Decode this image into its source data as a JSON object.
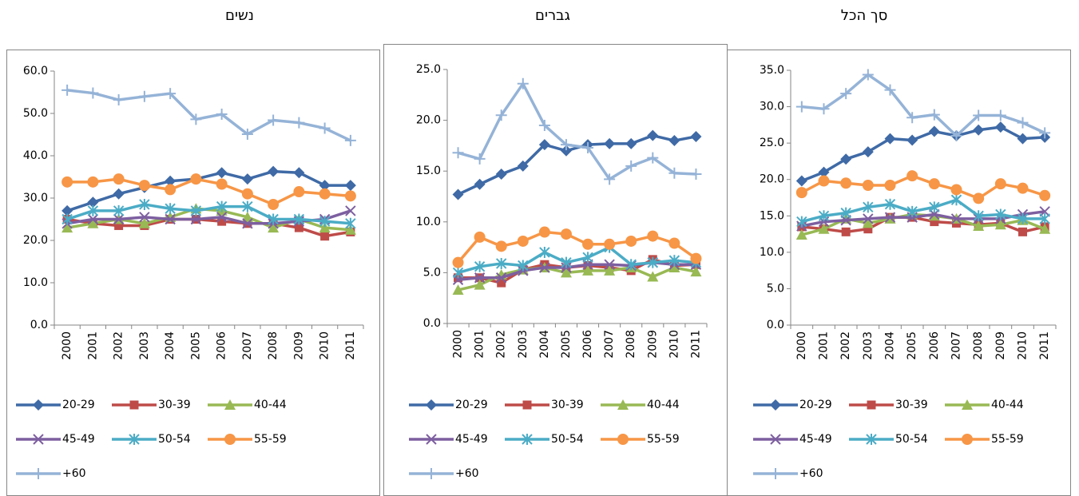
{
  "chart_data": [
    {
      "type": "line",
      "title": "נשים",
      "categories": [
        "2000",
        "2001",
        "2002",
        "2003",
        "2004",
        "2005",
        "2006",
        "2007",
        "2008",
        "2009",
        "2010",
        "2011"
      ],
      "ylim": [
        0,
        60
      ],
      "yticks": [
        {
          "value": 0,
          "label": "0.0"
        },
        {
          "value": 10,
          "label": "10.0"
        },
        {
          "value": 20,
          "label": "20.0"
        },
        {
          "value": 30,
          "label": "30.0"
        },
        {
          "value": 40,
          "label": "40.0"
        },
        {
          "value": 50,
          "label": "50.0"
        },
        {
          "value": 60,
          "label": "60.0"
        }
      ],
      "series": [
        {
          "name": "20-29",
          "color": "#3f6aa6",
          "marker": "diamond",
          "values": [
            27,
            29,
            31,
            32.5,
            34,
            34.5,
            36,
            34.5,
            36.3,
            36,
            33,
            33
          ]
        },
        {
          "name": "30-39",
          "color": "#be4b48",
          "marker": "square",
          "values": [
            25,
            24,
            23.5,
            23.5,
            25,
            25,
            24.5,
            24,
            24,
            23,
            21,
            22
          ]
        },
        {
          "name": "40-44",
          "color": "#98b954",
          "marker": "triangle",
          "values": [
            23,
            24,
            25,
            24,
            25.5,
            27.5,
            27,
            25.5,
            23,
            25,
            23,
            22.5
          ]
        },
        {
          "name": "45-49",
          "color": "#7d5fa0",
          "marker": "x",
          "values": [
            24,
            25,
            25,
            25.5,
            25,
            25,
            25.5,
            24,
            24,
            24.5,
            25,
            27
          ]
        },
        {
          "name": "50-54",
          "color": "#4bacc6",
          "marker": "star",
          "values": [
            25,
            27,
            27,
            28.5,
            27.5,
            27,
            28,
            28,
            25,
            25,
            24.5,
            24
          ]
        },
        {
          "name": "55-59",
          "color": "#f79646",
          "marker": "circle",
          "values": [
            33.8,
            33.8,
            34.5,
            33,
            32,
            34.5,
            33.3,
            31,
            28.5,
            31.5,
            31,
            30.5
          ]
        },
        {
          "name": "+60",
          "color": "#95b3d7",
          "marker": "plus",
          "values": [
            55.5,
            54.8,
            53.2,
            54,
            54.7,
            48.6,
            49.8,
            45.1,
            48.4,
            47.8,
            46.5,
            43.6
          ]
        }
      ]
    },
    {
      "type": "line",
      "title": "גברים",
      "categories": [
        "2000",
        "2001",
        "2002",
        "2003",
        "2004",
        "2005",
        "2006",
        "2007",
        "2008",
        "2009",
        "2010",
        "2011"
      ],
      "ylim": [
        0,
        25
      ],
      "yticks": [
        {
          "value": 0,
          "label": "0.0"
        },
        {
          "value": 5,
          "label": "5.0"
        },
        {
          "value": 10,
          "label": "10.0"
        },
        {
          "value": 15,
          "label": "15.0"
        },
        {
          "value": 20,
          "label": "20.0"
        },
        {
          "value": 25,
          "label": "25.0"
        }
      ],
      "series": [
        {
          "name": "20-29",
          "color": "#3f6aa6",
          "marker": "diamond",
          "values": [
            12.7,
            13.7,
            14.7,
            15.5,
            17.6,
            17.0,
            17.6,
            17.7,
            17.7,
            18.5,
            18.0,
            18.4
          ]
        },
        {
          "name": "30-39",
          "color": "#be4b48",
          "marker": "square",
          "values": [
            4.5,
            4.5,
            4.0,
            5.3,
            5.8,
            5.5,
            5.7,
            5.5,
            5.2,
            6.3,
            5.7,
            5.8
          ]
        },
        {
          "name": "40-44",
          "color": "#98b954",
          "marker": "triangle",
          "values": [
            3.3,
            3.8,
            4.8,
            5.3,
            5.5,
            5.0,
            5.2,
            5.2,
            5.5,
            4.6,
            5.5,
            5.1
          ]
        },
        {
          "name": "45-49",
          "color": "#7d5fa0",
          "marker": "x",
          "values": [
            4.3,
            4.5,
            4.5,
            5.2,
            5.5,
            5.5,
            5.8,
            5.8,
            5.7,
            6.0,
            5.8,
            5.8
          ]
        },
        {
          "name": "50-54",
          "color": "#4bacc6",
          "marker": "star",
          "values": [
            5.0,
            5.6,
            5.9,
            5.7,
            7.0,
            6.0,
            6.5,
            7.5,
            5.8,
            6.0,
            6.2,
            6.0
          ]
        },
        {
          "name": "55-59",
          "color": "#f79646",
          "marker": "circle",
          "values": [
            6.0,
            8.5,
            7.6,
            8.1,
            9.0,
            8.8,
            7.8,
            7.8,
            8.1,
            8.6,
            7.9,
            6.4
          ]
        },
        {
          "name": "+60",
          "color": "#95b3d7",
          "marker": "plus",
          "values": [
            16.8,
            16.2,
            20.5,
            23.6,
            19.5,
            17.6,
            17.3,
            14.2,
            15.5,
            16.3,
            14.8,
            14.7
          ]
        }
      ]
    },
    {
      "type": "line",
      "title": "סך הכל",
      "categories": [
        "2000",
        "2001",
        "2002",
        "2003",
        "2004",
        "2005",
        "2006",
        "2007",
        "2008",
        "2009",
        "2010",
        "2011"
      ],
      "ylim": [
        0,
        35
      ],
      "yticks": [
        {
          "value": 0,
          "label": "0.0"
        },
        {
          "value": 5,
          "label": "5.0"
        },
        {
          "value": 10,
          "label": "10.0"
        },
        {
          "value": 15,
          "label": "15.0"
        },
        {
          "value": 20,
          "label": "20.0"
        },
        {
          "value": 25,
          "label": "25.0"
        },
        {
          "value": 30,
          "label": "30.0"
        },
        {
          "value": 35,
          "label": "35.0"
        }
      ],
      "series": [
        {
          "name": "20-29",
          "color": "#3f6aa6",
          "marker": "diamond",
          "values": [
            19.8,
            21.0,
            22.8,
            23.8,
            25.6,
            25.4,
            26.6,
            26.0,
            26.8,
            27.2,
            25.6,
            25.8
          ]
        },
        {
          "name": "30-39",
          "color": "#be4b48",
          "marker": "square",
          "values": [
            13.5,
            13.2,
            12.8,
            13.2,
            14.8,
            14.8,
            14.2,
            14.0,
            13.8,
            14.0,
            12.8,
            13.5
          ]
        },
        {
          "name": "40-44",
          "color": "#98b954",
          "marker": "triangle",
          "values": [
            12.4,
            13.2,
            14.6,
            14.0,
            14.6,
            15.2,
            15.0,
            14.6,
            13.6,
            13.8,
            14.4,
            13.2
          ]
        },
        {
          "name": "45-49",
          "color": "#7d5fa0",
          "marker": "x",
          "values": [
            13.6,
            14.2,
            14.4,
            14.6,
            14.8,
            14.8,
            15.2,
            14.6,
            14.6,
            14.6,
            15.2,
            15.6
          ]
        },
        {
          "name": "50-54",
          "color": "#4bacc6",
          "marker": "star",
          "values": [
            14.2,
            15.0,
            15.4,
            16.2,
            16.6,
            15.6,
            16.2,
            17.2,
            15.0,
            15.2,
            14.6,
            14.6
          ]
        },
        {
          "name": "55-59",
          "color": "#f79646",
          "marker": "circle",
          "values": [
            18.2,
            19.8,
            19.5,
            19.2,
            19.2,
            20.5,
            19.4,
            18.6,
            17.4,
            19.4,
            18.8,
            17.8
          ]
        },
        {
          "name": "+60",
          "color": "#95b3d7",
          "marker": "plus",
          "values": [
            30.0,
            29.7,
            31.8,
            34.4,
            32.3,
            28.5,
            28.9,
            26.0,
            28.8,
            28.8,
            27.8,
            26.4
          ]
        }
      ]
    }
  ]
}
